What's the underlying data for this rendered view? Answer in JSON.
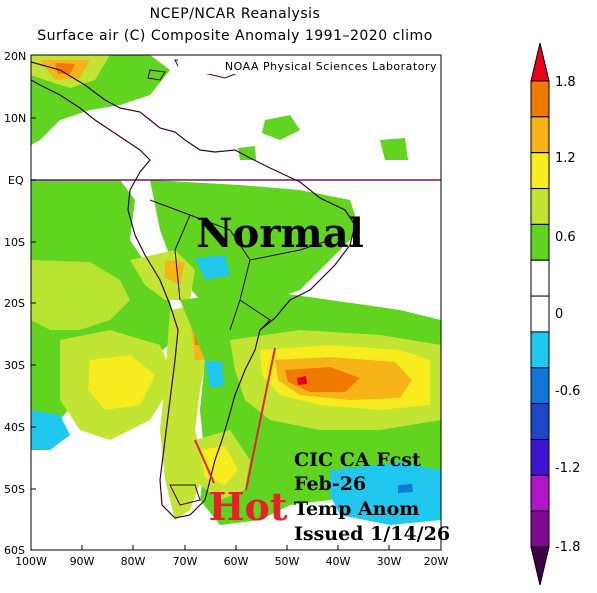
{
  "header": {
    "title": "NCEP/NCAR Reanalysis",
    "subtitle": "Surface air (C) Composite Anomaly 1991–2020 climo"
  },
  "credit": "NOAA Physical Sciences Laboratory",
  "map": {
    "lat_labels": [
      "20N",
      "10N",
      "EQ",
      "10S",
      "20S",
      "30S",
      "40S",
      "50S",
      "60S"
    ],
    "lon_labels": [
      "100W",
      "90W",
      "80W",
      "70W",
      "60W",
      "50W",
      "40W",
      "30W",
      "20W"
    ],
    "annotations": {
      "normal": "Normal",
      "hot": "Hot",
      "forecast_lines": [
        "CIC CA Fcst",
        "Feb-26",
        "Temp Anom",
        "Issued 1/14/26"
      ]
    }
  },
  "colorbar": {
    "labels": [
      "1.8",
      "1.2",
      "0.6",
      "0",
      "-0.6",
      "-1.2",
      "-1.8"
    ],
    "colors": [
      "#e8001a",
      "#f07a00",
      "#f6b418",
      "#f6ec1e",
      "#c2e432",
      "#60d41e",
      "#ffffff",
      "#ffffff",
      "#20c8f0",
      "#1276d6",
      "#1e46c8",
      "#3c14d0",
      "#b016c8",
      "#7c0a8c",
      "#3c0048"
    ]
  },
  "colors": {
    "hot_text": "#e8202a",
    "equator_line": "#6a1a6a",
    "coast": "#3a003a"
  }
}
